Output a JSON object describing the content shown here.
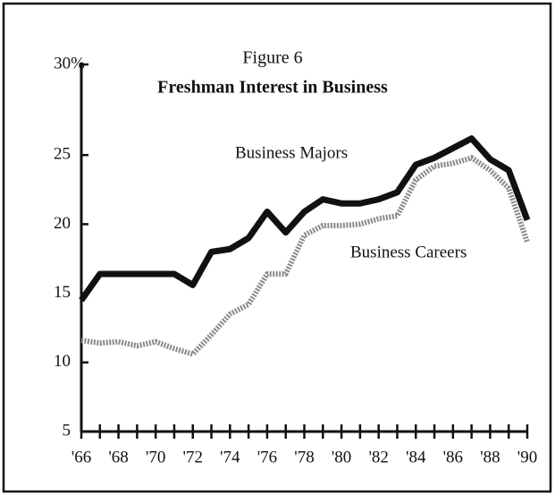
{
  "chart_data": {
    "type": "line",
    "title": "Figure 6",
    "subtitle": "Freshman Interest in Business",
    "x": [
      1966,
      1967,
      1968,
      1969,
      1970,
      1971,
      1972,
      1973,
      1974,
      1975,
      1976,
      1977,
      1978,
      1979,
      1980,
      1981,
      1982,
      1983,
      1984,
      1985,
      1986,
      1987,
      1988,
      1989,
      1990
    ],
    "series": [
      {
        "name": "Business Majors",
        "color": "#111111",
        "style": "solid",
        "values": [
          14.5,
          16.4,
          16.4,
          16.4,
          16.4,
          16.4,
          15.6,
          18.0,
          18.2,
          19.0,
          20.9,
          19.4,
          20.9,
          21.8,
          21.5,
          21.5,
          21.8,
          22.3,
          24.3,
          24.8,
          25.5,
          26.2,
          24.7,
          23.9,
          20.3
        ]
      },
      {
        "name": "Business Careers",
        "color": "#8a8a8a",
        "style": "dotted",
        "values": [
          11.6,
          11.4,
          11.5,
          11.2,
          11.5,
          11.0,
          10.6,
          12.0,
          13.5,
          14.2,
          16.4,
          16.4,
          19.2,
          19.9,
          19.9,
          20.0,
          20.4,
          20.6,
          23.2,
          24.2,
          24.4,
          24.8,
          23.9,
          22.6,
          18.7
        ]
      }
    ],
    "xlim": [
      1966,
      1990
    ],
    "xticks": [
      {
        "value": 1966,
        "label": "'66"
      },
      {
        "value": 1968,
        "label": "'68"
      },
      {
        "value": 1970,
        "label": "'70"
      },
      {
        "value": 1972,
        "label": "'72"
      },
      {
        "value": 1974,
        "label": "'74"
      },
      {
        "value": 1976,
        "label": "'76"
      },
      {
        "value": 1978,
        "label": "'78"
      },
      {
        "value": 1980,
        "label": "'80"
      },
      {
        "value": 1982,
        "label": "'82"
      },
      {
        "value": 1984,
        "label": "'84"
      },
      {
        "value": 1986,
        "label": "'86"
      },
      {
        "value": 1988,
        "label": "'88"
      },
      {
        "value": 1990,
        "label": "'90"
      }
    ],
    "ylim": [
      5,
      30
    ],
    "yticks": [
      5,
      10,
      15,
      20,
      25,
      {
        "value": 30,
        "label": "30%"
      }
    ],
    "grid": false
  }
}
